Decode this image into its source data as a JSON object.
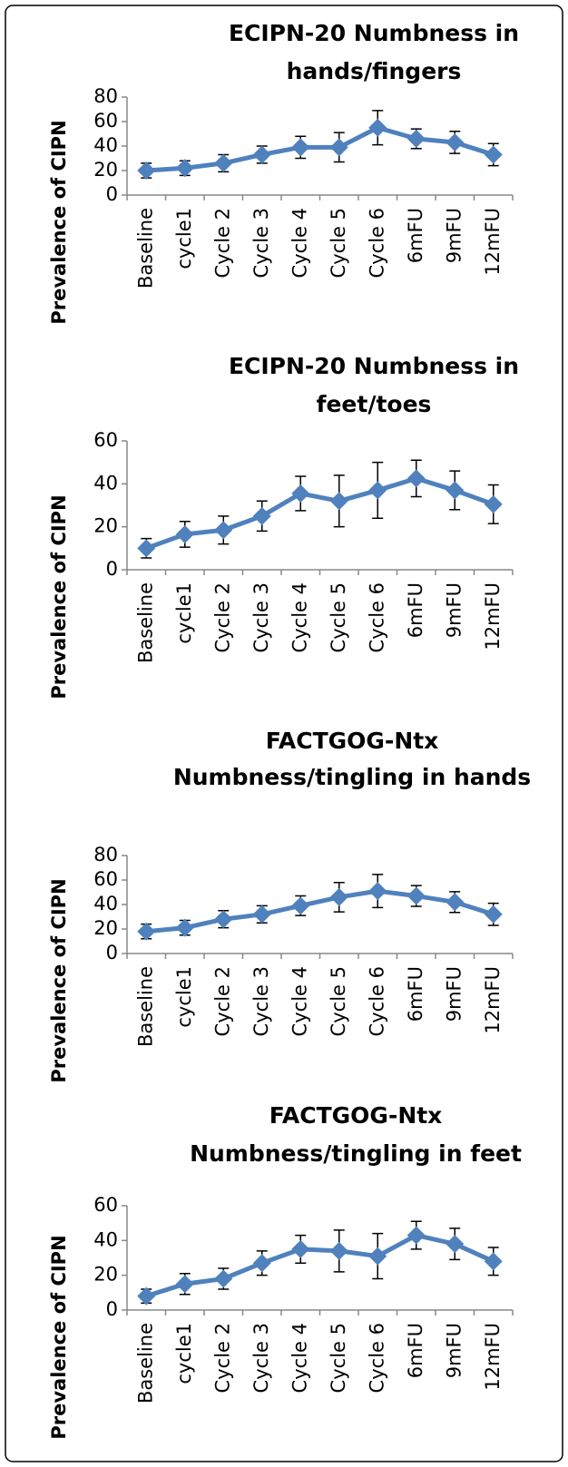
{
  "chart_data": [
    {
      "type": "line",
      "title": [
        "ECIPN-20 Numbness in",
        "hands/fingers"
      ],
      "y_label": "Prevalence of CIPN",
      "categories": [
        "Baseline",
        "cycle1",
        "Cycle 2",
        "Cycle 3",
        "Cycle 4",
        "Cycle 5",
        "Cycle 6",
        "6mFU",
        "9mFU",
        "12mFU"
      ],
      "series": [
        {
          "color": "#4f81bd",
          "values": [
            20,
            22,
            26,
            33,
            39,
            39,
            55,
            46,
            43,
            33
          ],
          "errors": [
            6,
            6,
            7,
            7,
            9,
            12,
            14,
            8,
            9,
            9
          ]
        }
      ],
      "ylim": [
        0,
        80
      ],
      "yticks": [
        0,
        20,
        40,
        60,
        80
      ]
    },
    {
      "type": "line",
      "title": [
        "ECIPN-20 Numbness in",
        "feet/toes"
      ],
      "y_label": "Prevalence of CIPN",
      "categories": [
        "Baseline",
        "cycle1",
        "Cycle 2",
        "Cycle 3",
        "Cycle 4",
        "Cycle 5",
        "Cycle 6",
        "6mFU",
        "9mFU",
        "12mFU"
      ],
      "series": [
        {
          "color": "#4f81bd",
          "values": [
            10,
            16.5,
            18.5,
            25,
            35.5,
            32,
            37,
            42.5,
            37,
            30.5
          ],
          "errors": [
            4.5,
            6,
            6.5,
            7,
            8,
            12,
            13,
            8.5,
            9,
            9
          ]
        }
      ],
      "ylim": [
        0,
        60
      ],
      "yticks": [
        0,
        20,
        40,
        60
      ]
    },
    {
      "type": "line",
      "title": [
        "FACTGOG-Ntx",
        "Numbness/tingling in hands"
      ],
      "y_label": "Prevalence of CIPN",
      "categories": [
        "Baseline",
        "cycle1",
        "Cycle 2",
        "Cycle 3",
        "Cycle 4",
        "Cycle 5",
        "Cycle 6",
        "6mFU",
        "9mFU",
        "12mFU"
      ],
      "series": [
        {
          "color": "#4f81bd",
          "values": [
            18,
            21,
            28,
            32,
            39,
            46,
            51,
            47,
            42,
            32
          ],
          "errors": [
            6,
            6,
            7,
            7,
            8,
            12,
            13.5,
            8.5,
            8.5,
            9
          ]
        }
      ],
      "ylim": [
        0,
        80
      ],
      "yticks": [
        0,
        20,
        40,
        60,
        80
      ]
    },
    {
      "type": "line",
      "title": [
        "FACTGOG-Ntx",
        "Numbness/tingling in feet"
      ],
      "y_label": "Prevalence of CIPN",
      "categories": [
        "Baseline",
        "cycle1",
        "Cycle 2",
        "Cycle 3",
        "Cycle 4",
        "Cycle 5",
        "Cycle 6",
        "6mFU",
        "9mFU",
        "12mFU"
      ],
      "series": [
        {
          "color": "#4f81bd",
          "values": [
            8,
            15,
            18,
            27,
            35,
            34,
            31,
            43,
            38,
            28
          ],
          "errors": [
            4,
            6,
            6,
            7,
            8,
            12,
            13,
            8,
            9,
            8
          ]
        }
      ],
      "ylim": [
        0,
        60
      ],
      "yticks": [
        0,
        20,
        40,
        60
      ]
    }
  ]
}
